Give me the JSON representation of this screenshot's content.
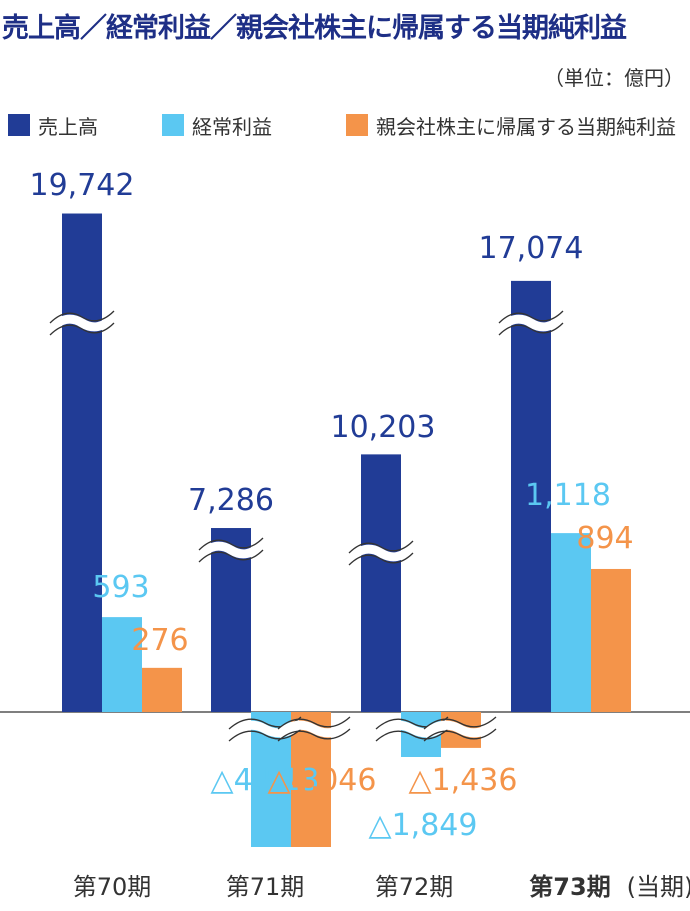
{
  "title": "売上高／経常利益／親会社株主に帰属する当期純利益",
  "unit": "（単位：億円）",
  "colors": {
    "sales": "#213c96",
    "ordinary": "#5bc8f2",
    "net": "#f4944a"
  },
  "chart_data": {
    "type": "bar",
    "title": "売上高／経常利益／親会社株主に帰属する当期純利益",
    "categories": [
      "第70期",
      "第71期",
      "第72期",
      "第73期"
    ],
    "current_period_note": "(当期)",
    "broken_axis": true,
    "legend_position": "top",
    "series": [
      {
        "name": "売上高",
        "values": [
          19742,
          7286,
          10203,
          17074
        ],
        "labels": [
          "19,742",
          "7,286",
          "10,203",
          "17,074"
        ]
      },
      {
        "name": "経常利益",
        "values": [
          593,
          -4513,
          -1849,
          1118
        ],
        "labels": [
          "593",
          "△4,513",
          "△1,849",
          "1,118"
        ]
      },
      {
        "name": "親会社株主に帰属する当期純利益",
        "values": [
          276,
          -4046,
          -1436,
          894
        ],
        "labels": [
          "276",
          "△4,046",
          "△1,436",
          "894"
        ]
      }
    ]
  }
}
